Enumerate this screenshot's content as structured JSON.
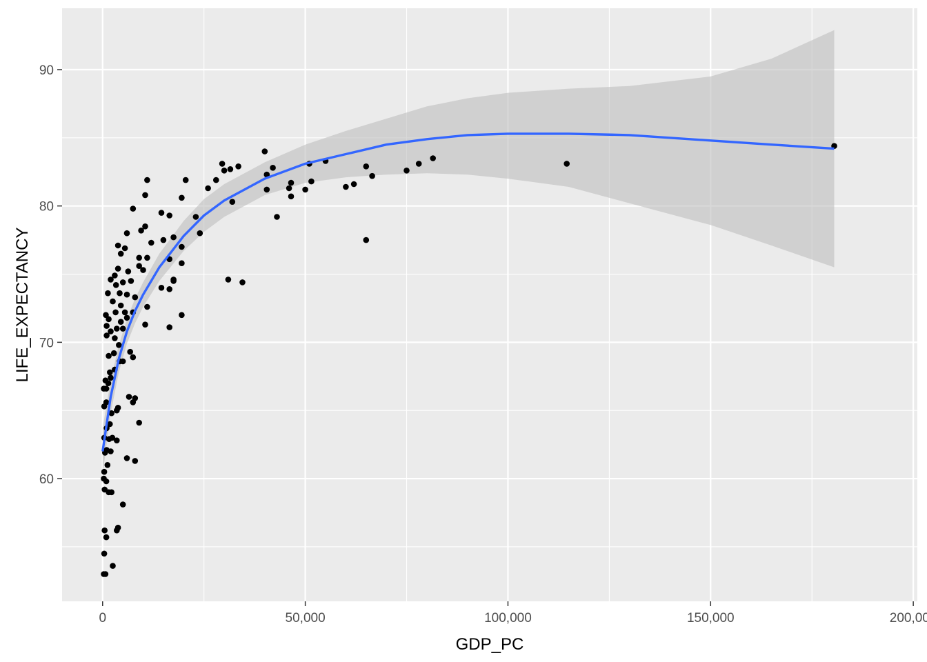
{
  "chart_data": {
    "type": "scatter",
    "xlabel": "GDP_PC",
    "ylabel": "LIFE_EXPECTANCY",
    "xlim": [
      -10000,
      201000
    ],
    "ylim": [
      51,
      94.5
    ],
    "x_ticks": [
      0,
      50000,
      100000,
      150000,
      200000
    ],
    "x_tick_labels": [
      "0",
      "50,000",
      "100,000",
      "150,000",
      "200,000"
    ],
    "y_ticks": [
      60,
      70,
      80,
      90
    ],
    "y_tick_labels": [
      "60",
      "70",
      "80",
      "90"
    ],
    "grid": true,
    "legend": "none",
    "colors": {
      "panel": "#ebebeb",
      "grid": "#ffffff",
      "points": "#000000",
      "smooth": "#3366ff",
      "ribbon": "#bebebe"
    },
    "points": [
      [
        300,
        53.0
      ],
      [
        700,
        53.0
      ],
      [
        2500,
        53.6
      ],
      [
        400,
        54.5
      ],
      [
        900,
        55.7
      ],
      [
        500,
        56.2
      ],
      [
        3500,
        56.2
      ],
      [
        3800,
        56.4
      ],
      [
        5000,
        58.1
      ],
      [
        1500,
        59.0
      ],
      [
        500,
        59.2
      ],
      [
        2200,
        59.0
      ],
      [
        900,
        59.8
      ],
      [
        300,
        60.0
      ],
      [
        400,
        60.5
      ],
      [
        1200,
        61.0
      ],
      [
        6000,
        61.5
      ],
      [
        8000,
        61.3
      ],
      [
        600,
        61.9
      ],
      [
        2000,
        62.0
      ],
      [
        1000,
        62.1
      ],
      [
        3500,
        62.8
      ],
      [
        1600,
        62.9
      ],
      [
        400,
        63.0
      ],
      [
        2400,
        63.0
      ],
      [
        1000,
        63.7
      ],
      [
        1800,
        64.0
      ],
      [
        9000,
        64.1
      ],
      [
        2200,
        64.8
      ],
      [
        3500,
        65.0
      ],
      [
        3800,
        65.2
      ],
      [
        400,
        65.3
      ],
      [
        900,
        65.6
      ],
      [
        6500,
        66.0
      ],
      [
        8000,
        65.9
      ],
      [
        7500,
        65.6
      ],
      [
        300,
        66.6
      ],
      [
        900,
        66.6
      ],
      [
        1400,
        67.0
      ],
      [
        2000,
        67.4
      ],
      [
        700,
        67.2
      ],
      [
        1800,
        67.8
      ],
      [
        3000,
        68.0
      ],
      [
        5000,
        68.6
      ],
      [
        4200,
        68.6
      ],
      [
        7500,
        68.9
      ],
      [
        1500,
        69.0
      ],
      [
        2800,
        69.2
      ],
      [
        6800,
        69.3
      ],
      [
        4000,
        69.8
      ],
      [
        1000,
        70.5
      ],
      [
        3000,
        70.3
      ],
      [
        2000,
        70.8
      ],
      [
        5000,
        71.0
      ],
      [
        3500,
        71.0
      ],
      [
        4500,
        71.5
      ],
      [
        6000,
        71.8
      ],
      [
        1000,
        71.2
      ],
      [
        1500,
        71.7
      ],
      [
        800,
        72.0
      ],
      [
        3200,
        72.2
      ],
      [
        5500,
        72.2
      ],
      [
        7500,
        72.2
      ],
      [
        10500,
        71.3
      ],
      [
        11000,
        72.6
      ],
      [
        16500,
        71.1
      ],
      [
        19500,
        72.0
      ],
      [
        4500,
        72.7
      ],
      [
        2500,
        73.0
      ],
      [
        6000,
        73.5
      ],
      [
        8000,
        73.3
      ],
      [
        1300,
        73.6
      ],
      [
        4200,
        73.6
      ],
      [
        3300,
        74.2
      ],
      [
        5000,
        74.4
      ],
      [
        7000,
        74.5
      ],
      [
        2000,
        74.6
      ],
      [
        3000,
        74.9
      ],
      [
        6300,
        75.2
      ],
      [
        3800,
        75.4
      ],
      [
        9000,
        75.6
      ],
      [
        10000,
        75.3
      ],
      [
        14500,
        74.0
      ],
      [
        16500,
        73.9
      ],
      [
        17500,
        74.5
      ],
      [
        17500,
        74.6
      ],
      [
        19500,
        75.8
      ],
      [
        31000,
        74.6
      ],
      [
        34500,
        74.4
      ],
      [
        4500,
        76.5
      ],
      [
        9000,
        76.2
      ],
      [
        11000,
        76.2
      ],
      [
        5500,
        76.9
      ],
      [
        3800,
        77.1
      ],
      [
        12000,
        77.3
      ],
      [
        15000,
        77.5
      ],
      [
        16500,
        76.1
      ],
      [
        17500,
        77.7
      ],
      [
        19500,
        77.0
      ],
      [
        6000,
        78.0
      ],
      [
        9500,
        78.2
      ],
      [
        10500,
        78.5
      ],
      [
        14500,
        79.5
      ],
      [
        16500,
        79.3
      ],
      [
        23000,
        79.2
      ],
      [
        7500,
        79.8
      ],
      [
        24000,
        78.0
      ],
      [
        19500,
        80.6
      ],
      [
        10500,
        80.8
      ],
      [
        26000,
        81.3
      ],
      [
        28000,
        81.9
      ],
      [
        11000,
        81.9
      ],
      [
        20500,
        81.9
      ],
      [
        30000,
        82.6
      ],
      [
        31500,
        82.7
      ],
      [
        29500,
        83.1
      ],
      [
        33500,
        82.9
      ],
      [
        40000,
        84.0
      ],
      [
        40500,
        82.3
      ],
      [
        40500,
        81.2
      ],
      [
        42000,
        82.8
      ],
      [
        43000,
        79.2
      ],
      [
        46000,
        81.3
      ],
      [
        46500,
        80.7
      ],
      [
        46500,
        81.7
      ],
      [
        51000,
        83.1
      ],
      [
        51500,
        81.8
      ],
      [
        50000,
        81.2
      ],
      [
        55000,
        83.3
      ],
      [
        60000,
        81.4
      ],
      [
        62000,
        81.6
      ],
      [
        65000,
        82.9
      ],
      [
        66500,
        82.2
      ],
      [
        65000,
        77.5
      ],
      [
        75000,
        82.6
      ],
      [
        78000,
        83.1
      ],
      [
        81500,
        83.5
      ],
      [
        114500,
        83.1
      ],
      [
        180500,
        84.4
      ],
      [
        32000,
        80.3
      ]
    ],
    "smooth": {
      "x": [
        0,
        2000,
        4000,
        6000,
        8000,
        10000,
        14000,
        20000,
        25000,
        30000,
        40000,
        50000,
        60000,
        70000,
        80000,
        90000,
        100000,
        115000,
        130000,
        150000,
        165000,
        180500
      ],
      "y": [
        62.0,
        66.0,
        68.8,
        70.8,
        72.3,
        73.5,
        75.5,
        77.8,
        79.3,
        80.4,
        82.0,
        83.1,
        83.8,
        84.5,
        84.9,
        85.2,
        85.3,
        85.3,
        85.2,
        84.8,
        84.5,
        84.2
      ],
      "lower": [
        60.3,
        64.8,
        67.8,
        69.9,
        71.4,
        72.6,
        74.5,
        76.7,
        78.1,
        79.2,
        80.8,
        81.7,
        82.1,
        82.3,
        82.4,
        82.3,
        82.0,
        81.4,
        80.2,
        78.6,
        77.1,
        75.5
      ],
      "upper": [
        63.7,
        67.2,
        69.8,
        71.7,
        73.2,
        74.4,
        76.5,
        78.9,
        80.5,
        81.6,
        83.2,
        84.5,
        85.5,
        86.4,
        87.3,
        87.9,
        88.3,
        88.6,
        88.8,
        89.5,
        90.8,
        92.9
      ]
    }
  }
}
